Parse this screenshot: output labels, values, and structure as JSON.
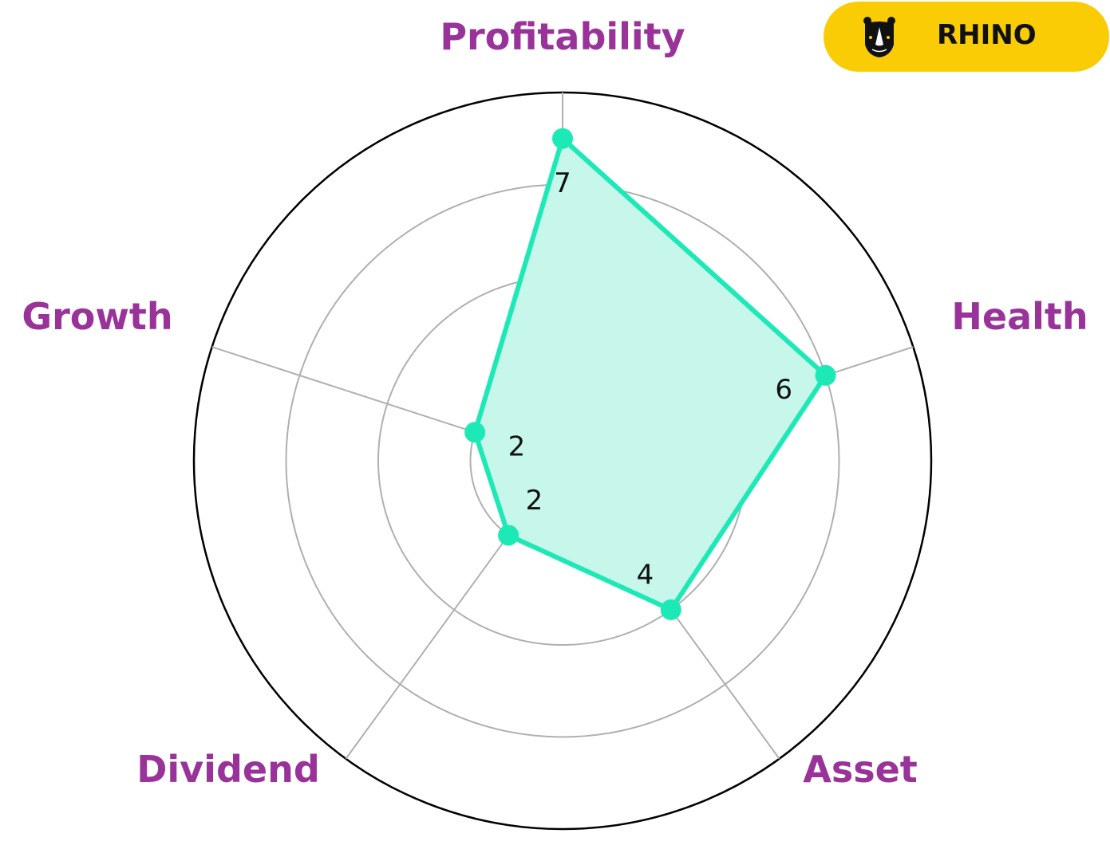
{
  "chart_data": {
    "type": "radar",
    "categories": [
      "Profitability",
      "Health",
      "Asset",
      "Dividend",
      "Growth"
    ],
    "values": [
      7,
      6,
      4,
      2,
      2
    ],
    "value_labels": [
      "7",
      "6",
      "4",
      "2",
      "2"
    ],
    "rlim": [
      0,
      8
    ],
    "rgrid": [
      2,
      4,
      6,
      8
    ],
    "grid": true,
    "colors": {
      "line": "#1de9b6",
      "fill": "#c6f7ea",
      "label": "#993399",
      "grid": "#b0b0b0"
    }
  },
  "logo": {
    "text": "RHINO",
    "color": "#facc06",
    "icon": "rhino-head-icon"
  }
}
